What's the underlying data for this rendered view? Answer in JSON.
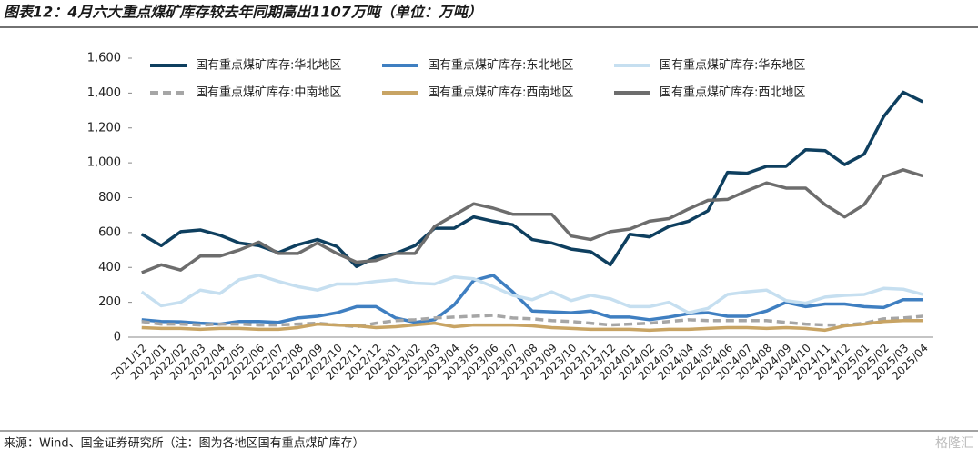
{
  "title": "图表12：4月六大重点煤矿库存较去年同期高出1107万吨（单位：万吨）",
  "source": "来源：Wind、国金证券研究所（注：图为各地区国有重点煤矿库存）",
  "watermark": "格隆汇",
  "chart_data": {
    "type": "line",
    "categories": [
      "2021/12",
      "2022/01",
      "2022/02",
      "2022/03",
      "2022/04",
      "2022/05",
      "2022/06",
      "2022/07",
      "2022/08",
      "2022/09",
      "2022/10",
      "2022/11",
      "2022/12",
      "2023/01",
      "2023/02",
      "2023/03",
      "2023/04",
      "2023/05",
      "2023/06",
      "2023/07",
      "2023/08",
      "2023/09",
      "2023/10",
      "2023/11",
      "2023/12",
      "2024/01",
      "2024/02",
      "2024/03",
      "2024/04",
      "2024/05",
      "2024/06",
      "2024/07",
      "2024/08",
      "2024/09",
      "2024/10",
      "2024/11",
      "2024/12",
      "2025/01",
      "2025/02",
      "2025/03",
      "2025/04"
    ],
    "ylim": [
      0,
      1600
    ],
    "yticks": [
      0,
      200,
      400,
      600,
      800,
      {
        "value": 1000,
        "label": "1,000"
      },
      {
        "value": 1200,
        "label": "1,200"
      },
      {
        "value": 1400,
        "label": "1,400"
      },
      {
        "value": 1600,
        "label": "1,600"
      }
    ],
    "series": [
      {
        "name": "国有重点煤矿库存:华北地区",
        "color": "#0e3f5f",
        "values": [
          590,
          525,
          605,
          615,
          585,
          540,
          525,
          485,
          530,
          560,
          520,
          405,
          460,
          480,
          525,
          625,
          625,
          690,
          665,
          645,
          560,
          540,
          505,
          490,
          415,
          590,
          575,
          635,
          665,
          725,
          945,
          940,
          980,
          980,
          1075,
          1070,
          990,
          1050,
          1265,
          1405,
          1350
        ]
      },
      {
        "name": "国有重点煤矿库存:东北地区",
        "color": "#3f7fc1",
        "values": [
          100,
          90,
          88,
          80,
          75,
          90,
          90,
          85,
          110,
          120,
          140,
          175,
          175,
          110,
          85,
          100,
          185,
          325,
          355,
          260,
          150,
          145,
          140,
          150,
          115,
          115,
          100,
          115,
          135,
          140,
          120,
          120,
          150,
          200,
          175,
          190,
          190,
          175,
          170,
          215,
          215
        ]
      },
      {
        "name": "国有重点煤矿库存:华东地区",
        "color": "#c6dff0",
        "values": [
          260,
          180,
          200,
          270,
          250,
          330,
          355,
          320,
          290,
          270,
          305,
          305,
          320,
          330,
          310,
          305,
          345,
          335,
          290,
          240,
          215,
          260,
          210,
          240,
          220,
          175,
          175,
          200,
          140,
          165,
          245,
          260,
          270,
          210,
          195,
          230,
          240,
          245,
          280,
          275,
          245
        ]
      },
      {
        "name": "国有重点煤矿库存:中南地区",
        "color": "#a6a6a6",
        "dashed": true,
        "values": [
          90,
          75,
          75,
          70,
          75,
          75,
          70,
          70,
          75,
          80,
          70,
          60,
          80,
          95,
          100,
          110,
          115,
          120,
          125,
          110,
          105,
          95,
          90,
          80,
          70,
          75,
          80,
          90,
          100,
          95,
          95,
          95,
          95,
          85,
          75,
          70,
          70,
          80,
          105,
          110,
          120
        ]
      },
      {
        "name": "国有重点煤矿库存:西南地区",
        "color": "#c8a464",
        "values": [
          55,
          50,
          50,
          45,
          50,
          50,
          45,
          45,
          55,
          75,
          70,
          65,
          55,
          60,
          70,
          80,
          60,
          70,
          70,
          70,
          65,
          55,
          50,
          45,
          45,
          45,
          40,
          45,
          45,
          50,
          55,
          55,
          50,
          55,
          50,
          40,
          65,
          75,
          90,
          95,
          95
        ]
      },
      {
        "name": "国有重点煤矿库存:西北地区",
        "color": "#6d6d6d",
        "values": [
          370,
          415,
          385,
          465,
          465,
          500,
          545,
          480,
          480,
          540,
          480,
          430,
          440,
          480,
          480,
          635,
          700,
          765,
          740,
          705,
          705,
          705,
          580,
          560,
          605,
          620,
          665,
          680,
          735,
          785,
          790,
          840,
          885,
          855,
          855,
          760,
          690,
          760,
          920,
          960,
          925
        ]
      }
    ]
  }
}
